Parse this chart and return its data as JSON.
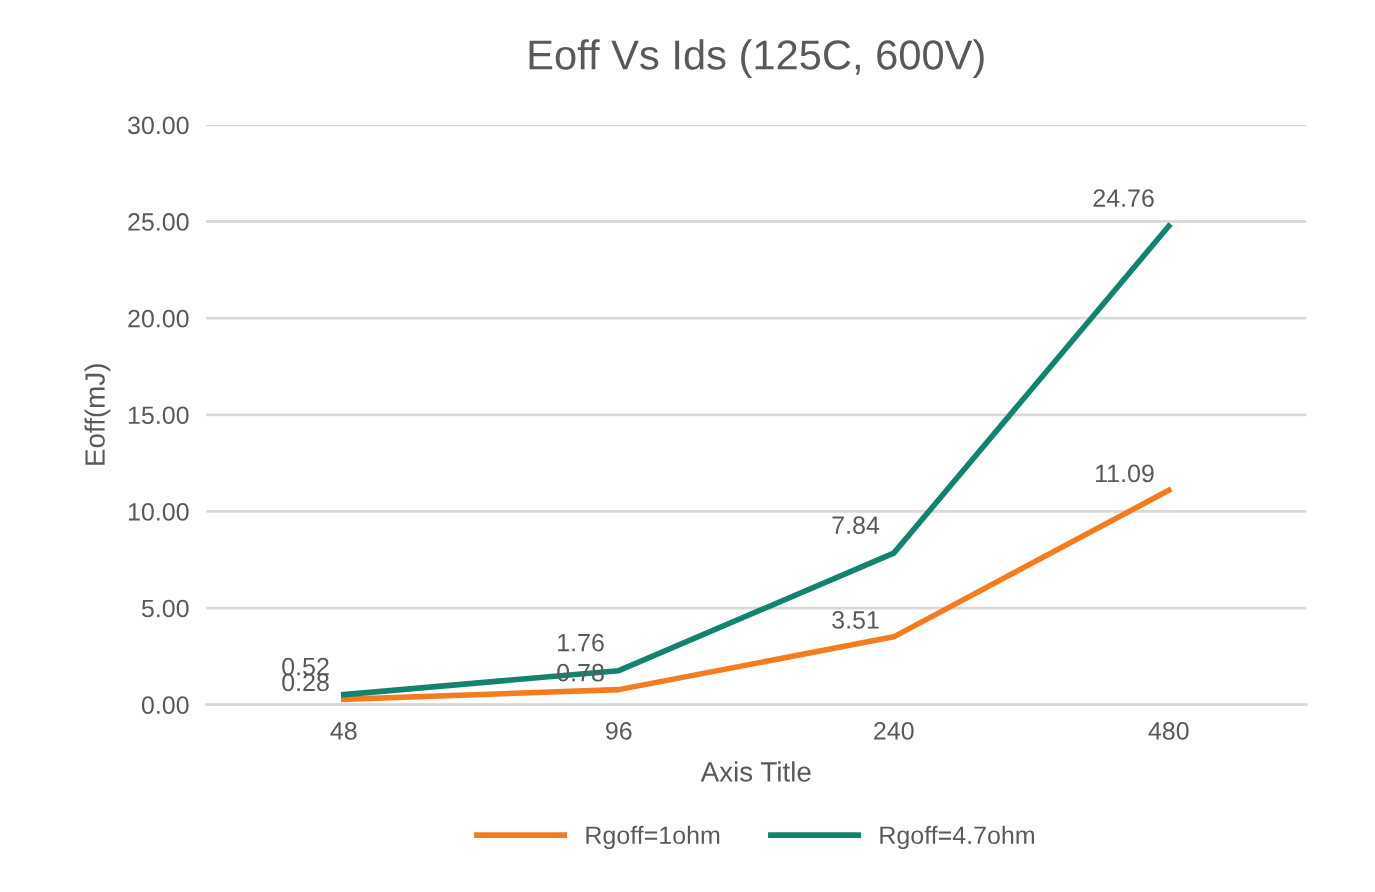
{
  "chart_data": {
    "type": "line",
    "title": "Eoff Vs Ids (125C, 600V)",
    "xlabel": "Axis Title",
    "ylabel": "Eoff(mJ)",
    "categories": [
      "48",
      "96",
      "240",
      "480"
    ],
    "series": [
      {
        "name": "Rgoff=1ohm",
        "color": "#f47c20",
        "values": [
          0.28,
          0.78,
          3.51,
          11.09
        ],
        "value_labels": [
          "0.28",
          "0.78",
          "3.51",
          "11.09"
        ]
      },
      {
        "name": "Rgoff=4.7ohm",
        "color": "#13836f",
        "values": [
          0.52,
          1.76,
          7.84,
          24.76
        ],
        "value_labels": [
          "0.52",
          "1.76",
          "7.84",
          "24.76"
        ]
      }
    ],
    "ylim": [
      0,
      30
    ],
    "yticks": [
      {
        "value": 0,
        "label": "0.00"
      },
      {
        "value": 5,
        "label": "5.00"
      },
      {
        "value": 10,
        "label": "10.00"
      },
      {
        "value": 15,
        "label": "15.00"
      },
      {
        "value": 20,
        "label": "20.00"
      },
      {
        "value": 25,
        "label": "25.00"
      },
      {
        "value": 30,
        "label": "30.00"
      }
    ],
    "grid": "y",
    "legend": "bottom",
    "marker": "none",
    "line_style": "solid"
  }
}
